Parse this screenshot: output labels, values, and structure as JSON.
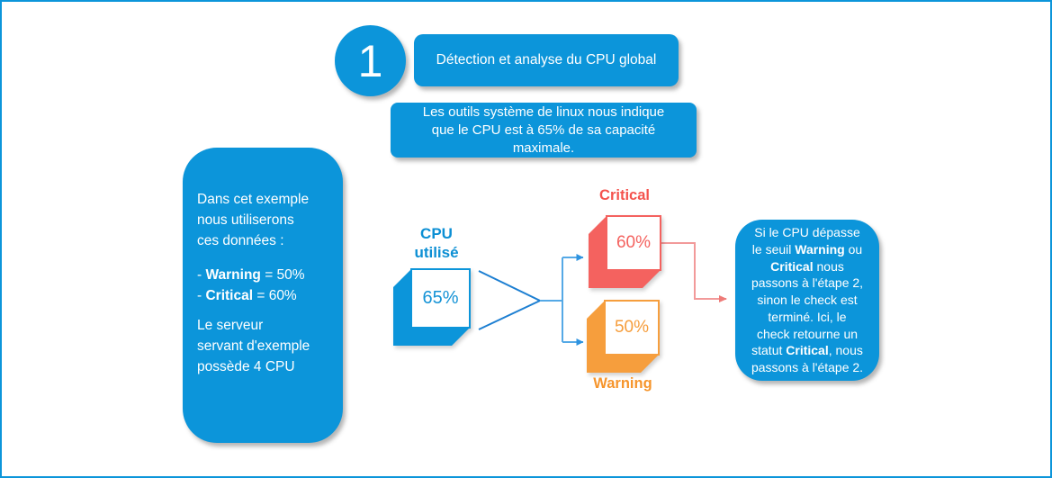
{
  "colors": {
    "brand_blue": "#0c95da",
    "split_connector_blue": "#1d7fd2",
    "branch_connector_blue": "#55a9e6",
    "critical_red": "#f4625f",
    "critical_label_red": "#f4534e",
    "warning_orange": "#f69e3d",
    "warning_label_orange": "#f6952c",
    "outcome_arrow_pink": "#f29a9a"
  },
  "step": {
    "number": "1",
    "title": "Détection et analyse du CPU global"
  },
  "intro": {
    "text": "Les outils système de linux nous indique\nque le CPU est à 65% de sa capacité\nmaximale."
  },
  "example": {
    "paragraphs": [
      "Dans cet exemple\nnous utiliserons\nces données :",
      "- **Warning** = 50%\n- **Critical** = 60%",
      "Le serveur\nservant d'exemple\npossède 4 CPU"
    ]
  },
  "flow": {
    "cpu": {
      "label": "CPU\nutilisé",
      "value": "65%"
    },
    "critical": {
      "label": "Critical",
      "value": "60%"
    },
    "warning": {
      "label": "Warning",
      "value": "50%"
    }
  },
  "outcome": {
    "text": "Si le CPU dépasse\nle seuil **Warning** ou\n**Critical** nous\npassons à l'étape 2,\nsinon le check est\nterminé. Ici, le\ncheck retourne un\nstatut **Critical**, nous\npassons à l'étape 2."
  }
}
